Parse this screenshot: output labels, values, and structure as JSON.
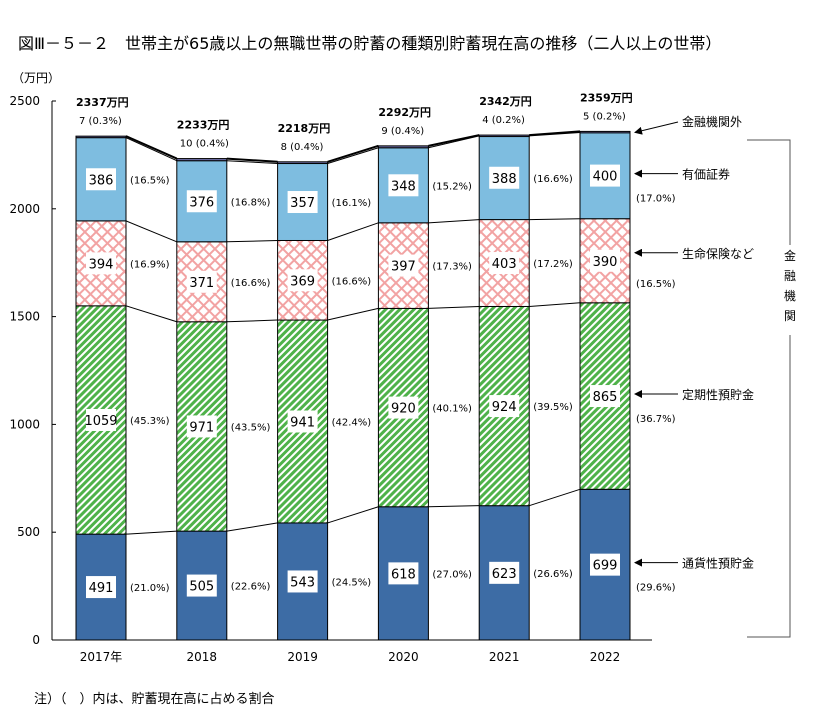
{
  "title": "図Ⅲ－５－２　世帯主が65歳以上の無職世帯の貯蓄の種類別貯蓄現在高の推移（二人以上の世帯）",
  "note": "注）（　）内は、貯蓄現在高に占める割合",
  "chart_data": {
    "type": "bar",
    "stacked": true,
    "title": "図Ⅲ－５－２　世帯主が65歳以上の無職世帯の貯蓄の種類別貯蓄現在高の推移（二人以上の世帯）",
    "ylabel": "（万円）",
    "ylim": [
      0,
      2500
    ],
    "yticks": [
      "0",
      "500",
      "1000",
      "1500",
      "2000",
      "2500"
    ],
    "grid": false,
    "legend": "right",
    "categories": [
      "2017年",
      "2018",
      "2019",
      "2020",
      "2021",
      "2022"
    ],
    "totals": [
      "2337万円",
      "2233万円",
      "2218万円",
      "2292万円",
      "2342万円",
      "2359万円"
    ],
    "series": [
      {
        "name": "通貨性預貯金",
        "color": "#3d6ca5",
        "values": [
          491,
          505,
          543,
          618,
          623,
          699
        ],
        "pct": [
          "(21.0%)",
          "(22.6%)",
          "(24.5%)",
          "(27.0%)",
          "(26.6%)",
          "(29.6%)"
        ]
      },
      {
        "name": "定期性預貯金",
        "color": "#4fb24a",
        "pattern": "diagonal",
        "values": [
          1059,
          971,
          941,
          920,
          924,
          865
        ],
        "pct": [
          "(45.3%)",
          "(43.5%)",
          "(42.4%)",
          "(40.1%)",
          "(39.5%)",
          "(36.7%)"
        ]
      },
      {
        "name": "生命保険など",
        "color": "#f2a3a3",
        "pattern": "crosshatch",
        "values": [
          394,
          371,
          369,
          397,
          403,
          390
        ],
        "pct": [
          "(16.9%)",
          "(16.6%)",
          "(16.6%)",
          "(17.3%)",
          "(17.2%)",
          "(16.5%)"
        ]
      },
      {
        "name": "有価証券",
        "color": "#7ebde0",
        "values": [
          386,
          376,
          357,
          348,
          388,
          400
        ],
        "pct": [
          "(16.5%)",
          "(16.8%)",
          "(16.1%)",
          "(15.2%)",
          "(16.6%)",
          "(17.0%)"
        ]
      },
      {
        "name": "金融機関外",
        "color": "#6f6fa8",
        "values": [
          7,
          10,
          8,
          9,
          4,
          5
        ],
        "pct": [
          "(0.3%)",
          "(0.4%)",
          "(0.4%)",
          "(0.4%)",
          "(0.2%)",
          "(0.2%)"
        ]
      }
    ],
    "bracket_label": "金融機関"
  }
}
